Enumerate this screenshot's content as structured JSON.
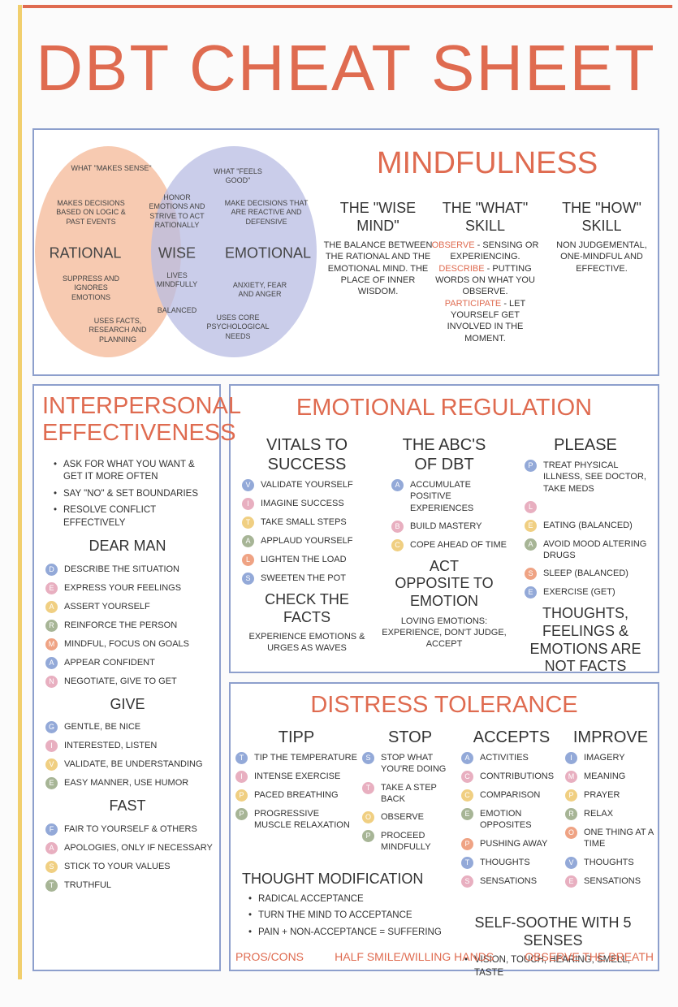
{
  "title": "DBT CHEAT SHEET",
  "mindfulness": {
    "title": "MINDFULNESS",
    "venn": {
      "rational": {
        "label": "RATIONAL",
        "notes": [
          "WHAT \"MAKES SENSE\"",
          "MAKES DECISIONS BASED ON LOGIC & PAST EVENTS",
          "SUPPRESS AND IGNORES EMOTIONS",
          "USES FACTS, RESEARCH AND PLANNING"
        ]
      },
      "wise": {
        "label": "WISE",
        "notes": [
          "HONOR EMOTIONS AND STRIVE TO ACT RATIONALLY",
          "LIVES MINDFULLY",
          "BALANCED"
        ]
      },
      "emotional": {
        "label": "EMOTIONAL",
        "notes": [
          "WHAT \"FEELS GOOD\"",
          "MAKE DECISIONS THAT ARE REACTIVE AND DEFENSIVE",
          "ANXIETY, FEAR AND ANGER",
          "USES CORE PSYCHOLOGICAL NEEDS"
        ]
      }
    },
    "wise_mind": {
      "heading": "THE \"WISE MIND\"",
      "body": "THE BALANCE BETWEEN THE RATIONAL AND THE EMOTIONAL MIND. THE PLACE OF INNER WISDOM."
    },
    "what_skill": {
      "heading": "THE \"WHAT\" SKILL",
      "items": [
        {
          "term": "OBSERVE",
          "text": " - SENSING OR EXPERIENCING."
        },
        {
          "term": "DESCRIBE",
          "text": " - PUTTING WORDS ON WHAT YOU OBSERVE."
        },
        {
          "term": "PARTICIPATE",
          "text": " - LET YOURSELF GET INVOLVED IN THE MOMENT."
        }
      ]
    },
    "how_skill": {
      "heading": "THE \"HOW\" SKILL",
      "body": "NON JUDGEMENTAL, ONE-MINDFUL AND EFFECTIVE."
    }
  },
  "interpersonal": {
    "title": "INTERPERSONAL EFFECTIVENESS",
    "bullets": [
      "ASK FOR WHAT YOU WANT & GET IT MORE OFTEN",
      "SAY \"NO\" & SET BOUNDARIES",
      "RESOLVE CONFLICT EFFECTIVELY"
    ],
    "groups": [
      {
        "heading": "DEAR MAN",
        "items": [
          {
            "letter": "D",
            "text": "DESCRIBE THE SITUATION"
          },
          {
            "letter": "E",
            "text": "EXPRESS YOUR FEELINGS"
          },
          {
            "letter": "A",
            "text": "ASSERT YOURSELF"
          },
          {
            "letter": "R",
            "text": "REINFORCE THE PERSON"
          },
          {
            "letter": "M",
            "text": "MINDFUL, FOCUS ON GOALS"
          },
          {
            "letter": "A",
            "text": "APPEAR CONFIDENT"
          },
          {
            "letter": "N",
            "text": "NEGOTIATE, GIVE TO GET"
          }
        ]
      },
      {
        "heading": "GIVE",
        "items": [
          {
            "letter": "G",
            "text": "GENTLE, BE NICE"
          },
          {
            "letter": "I",
            "text": "INTERESTED, LISTEN"
          },
          {
            "letter": "V",
            "text": "VALIDATE, BE UNDERSTANDING"
          },
          {
            "letter": "E",
            "text": "EASY MANNER, USE HUMOR"
          }
        ]
      },
      {
        "heading": "FAST",
        "items": [
          {
            "letter": "F",
            "text": "FAIR TO YOURSELF & OTHERS"
          },
          {
            "letter": "A",
            "text": "APOLOGIES, ONLY IF NECESSARY"
          },
          {
            "letter": "S",
            "text": "STICK TO YOUR VALUES"
          },
          {
            "letter": "T",
            "text": "TRUTHFUL"
          }
        ]
      }
    ]
  },
  "emotional": {
    "title": "EMOTIONAL REGULATION",
    "vitals": {
      "heading": "VITALS TO SUCCESS",
      "items": [
        {
          "letter": "V",
          "text": "VALIDATE YOURSELF"
        },
        {
          "letter": "I",
          "text": "IMAGINE SUCCESS"
        },
        {
          "letter": "T",
          "text": "TAKE SMALL STEPS"
        },
        {
          "letter": "A",
          "text": "APPLAUD YOURSELF"
        },
        {
          "letter": "L",
          "text": "LIGHTEN THE LOAD"
        },
        {
          "letter": "S",
          "text": "SWEETEN THE POT"
        }
      ]
    },
    "check": {
      "heading": "CHECK THE FACTS",
      "text": "EXPERIENCE EMOTIONS & URGES AS WAVES"
    },
    "abc": {
      "heading": "THE ABC'S OF DBT",
      "items": [
        {
          "letter": "A",
          "text": "ACCUMULATE POSITIVE EXPERIENCES"
        },
        {
          "letter": "B",
          "text": "BUILD MASTERY"
        },
        {
          "letter": "C",
          "text": "COPE AHEAD OF TIME"
        }
      ]
    },
    "opposite": {
      "heading": "ACT OPPOSITE TO EMOTION",
      "text": "LOVING EMOTIONS: EXPERIENCE, DON'T JUDGE, ACCEPT"
    },
    "please": {
      "heading": "PLEASE",
      "items": [
        {
          "letter": "P",
          "text": "TREAT PHYSICAL ILLNESS, SEE DOCTOR, TAKE MEDS"
        },
        {
          "letter": "L",
          "text": ""
        },
        {
          "letter": "E",
          "text": "EATING (BALANCED)"
        },
        {
          "letter": "A",
          "text": "AVOID MOOD ALTERING DRUGS"
        },
        {
          "letter": "S",
          "text": "SLEEP (BALANCED)"
        },
        {
          "letter": "E",
          "text": "EXERCISE (GET)"
        }
      ]
    },
    "note": "THOUGHTS, FEELINGS & EMOTIONS ARE NOT FACTS"
  },
  "distress": {
    "title": "DISTRESS TOLERANCE",
    "tipp": {
      "heading": "TIPP",
      "items": [
        {
          "letter": "T",
          "text": "TIP THE TEMPERATURE"
        },
        {
          "letter": "I",
          "text": "INTENSE EXERCISE"
        },
        {
          "letter": "P",
          "text": "PACED BREATHING"
        },
        {
          "letter": "P",
          "text": "PROGRESSIVE MUSCLE RELAXATION"
        }
      ]
    },
    "stop": {
      "heading": "STOP",
      "items": [
        {
          "letter": "S",
          "text": "STOP WHAT YOU'RE DOING"
        },
        {
          "letter": "T",
          "text": "TAKE A STEP BACK"
        },
        {
          "letter": "O",
          "text": "OBSERVE"
        },
        {
          "letter": "P",
          "text": "PROCEED MINDFULLY"
        }
      ]
    },
    "accepts": {
      "heading": "ACCEPTS",
      "items": [
        {
          "letter": "A",
          "text": "ACTIVITIES"
        },
        {
          "letter": "C",
          "text": "CONTRIBUTIONS"
        },
        {
          "letter": "C",
          "text": "COMPARISON"
        },
        {
          "letter": "E",
          "text": "EMOTION OPPOSITES"
        },
        {
          "letter": "P",
          "text": "PUSHING AWAY"
        },
        {
          "letter": "T",
          "text": "THOUGHTS"
        },
        {
          "letter": "S",
          "text": "SENSATIONS"
        }
      ]
    },
    "improve": {
      "heading": "IMPROVE",
      "items": [
        {
          "letter": "I",
          "text": "IMAGERY"
        },
        {
          "letter": "M",
          "text": "MEANING"
        },
        {
          "letter": "P",
          "text": "PRAYER"
        },
        {
          "letter": "R",
          "text": "RELAX"
        },
        {
          "letter": "O",
          "text": "ONE THING AT A TIME"
        },
        {
          "letter": "V",
          "text": "THOUGHTS"
        },
        {
          "letter": "E",
          "text": "SENSATIONS"
        }
      ]
    },
    "thought_modification": {
      "heading": "THOUGHT MODIFICATION",
      "bullets": [
        "RADICAL ACCEPTANCE",
        "TURN THE MIND TO ACCEPTANCE",
        "PAIN + NON-ACCEPTANCE = SUFFERING"
      ]
    },
    "self_soothe": {
      "heading": "SELF-SOOTHE WITH 5 SENSES",
      "bullets": [
        "VISION, TOUCH, HEARING, SMELL, TASTE"
      ]
    },
    "footer": [
      "PROS/CONS",
      "HALF SMILE/WILLING HANDS",
      "OBSERVE THE BREATH"
    ]
  }
}
